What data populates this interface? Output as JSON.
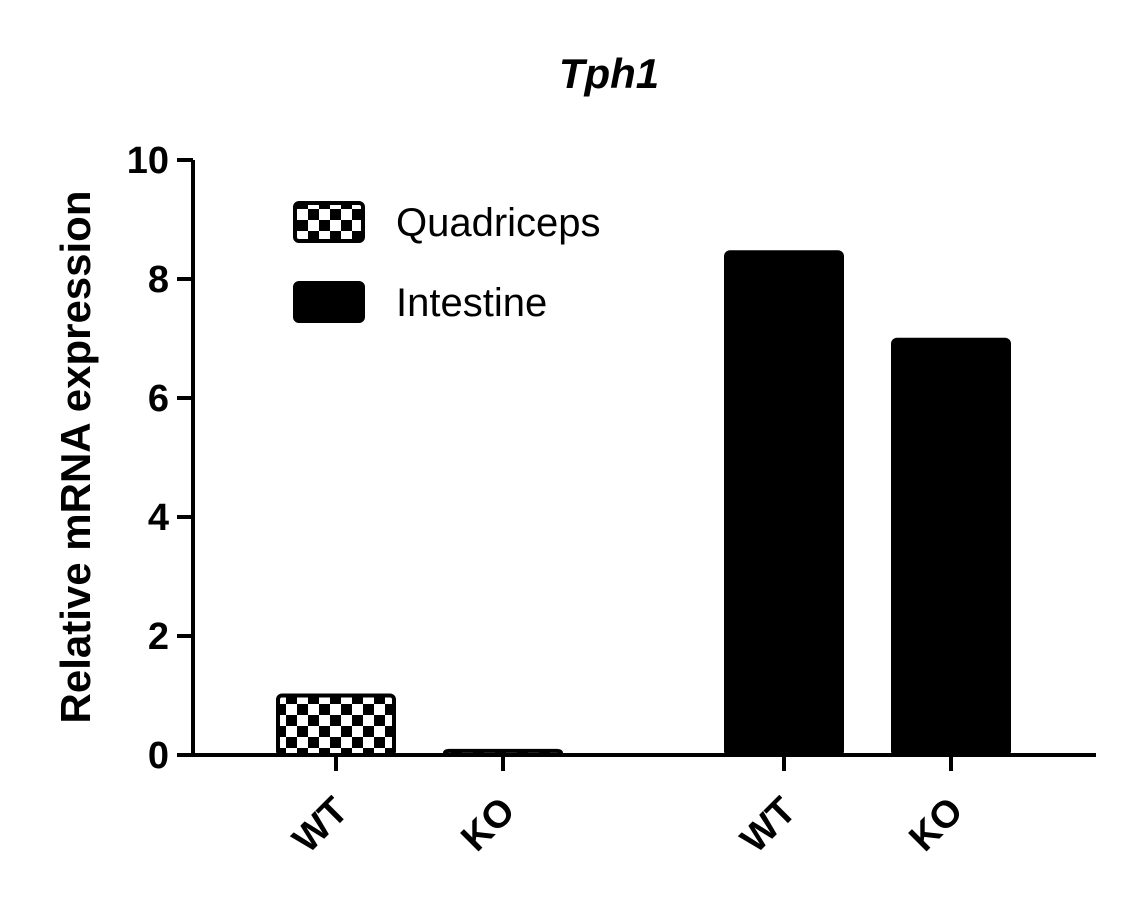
{
  "chart_data": {
    "type": "bar",
    "title": "Tph1",
    "xlabel": "",
    "ylabel": "Relative mRNA expression",
    "ylim": [
      0,
      10
    ],
    "yticks": [
      "0",
      "2",
      "4",
      "6",
      "8",
      "10"
    ],
    "categories": [
      "WT",
      "KO",
      "WT",
      "KO"
    ],
    "series": [
      {
        "name": "Quadriceps",
        "fill": "checkered",
        "color": "#000000",
        "values": [
          1.0,
          0.07,
          null,
          null
        ]
      },
      {
        "name": "Intestine",
        "fill": "solid",
        "color": "#000000",
        "values": [
          null,
          null,
          8.45,
          6.98
        ]
      }
    ],
    "legend": {
      "position": "top-left"
    },
    "grid": false
  }
}
